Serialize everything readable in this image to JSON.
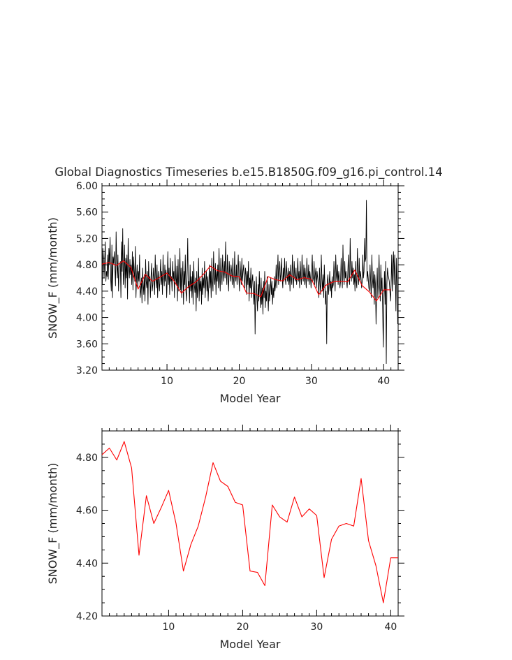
{
  "title": "Global Diagnostics Timeseries b.e15.B1850G.f09_g16.pi_control.14",
  "colors": {
    "monthly_line": "#000000",
    "annual_line": "#ff0000",
    "axes": "#000000",
    "background": "#ffffff"
  },
  "chart_data": [
    {
      "type": "line",
      "xlabel": "Model Year",
      "ylabel": "SNOW_F (mm/month)",
      "xlim": [
        1,
        42
      ],
      "ylim": [
        3.2,
        6.0
      ],
      "xticks": [
        "10",
        "20",
        "30",
        "40"
      ],
      "yticks": [
        "3.20",
        "3.60",
        "4.00",
        "4.40",
        "4.80",
        "5.20",
        "5.60",
        "6.00"
      ],
      "grid": false,
      "series": [
        {
          "color": "#000000",
          "x_start": 1.04,
          "x_step": 0.0833,
          "values": [
            4.5,
            5.05,
            4.9,
            4.6,
            4.88,
            5.15,
            4.55,
            4.7,
            4.62,
            4.95,
            4.58,
            5.05,
            4.8,
            5.22,
            4.58,
            4.4,
            5.1,
            4.3,
            4.92,
            4.82,
            5.0,
            4.75,
            4.48,
            5.3,
            4.8,
            4.6,
            4.95,
            4.4,
            4.75,
            4.78,
            4.85,
            4.3,
            5.15,
            4.7,
            5.35,
            4.5,
            4.68,
            5.1,
            4.45,
            4.9,
            4.6,
            4.95,
            4.28,
            5.2,
            4.75,
            4.6,
            4.88,
            4.65,
            4.8,
            4.5,
            5.0,
            4.42,
            4.92,
            4.7,
            4.55,
            5.08,
            4.3,
            4.62,
            4.8,
            4.45,
            4.7,
            4.55,
            4.95,
            4.3,
            4.4,
            4.6,
            4.22,
            4.75,
            4.5,
            4.35,
            4.65,
            4.25,
            4.88,
            4.55,
            4.45,
            4.7,
            4.2,
            4.85,
            4.55,
            4.62,
            4.3,
            4.6,
            4.82,
            4.4,
            4.5,
            4.75,
            4.58,
            4.35,
            4.95,
            4.6,
            4.45,
            4.8,
            4.3,
            4.7,
            4.55,
            4.4,
            4.62,
            4.88,
            4.5,
            4.7,
            4.35,
            4.95,
            4.62,
            4.48,
            4.8,
            4.55,
            4.72,
            4.3,
            4.6,
            5.0,
            4.5,
            4.75,
            4.35,
            4.9,
            4.55,
            4.62,
            4.4,
            4.85,
            4.58,
            4.7,
            4.3,
            4.95,
            4.6,
            4.5,
            4.78,
            4.25,
            4.88,
            4.4,
            4.6,
            5.05,
            4.42,
            4.75,
            4.3,
            4.6,
            4.85,
            4.2,
            4.7,
            4.5,
            4.95,
            4.4,
            4.25,
            4.68,
            5.2,
            4.45,
            4.55,
            4.22,
            4.8,
            4.4,
            4.62,
            4.3,
            4.7,
            4.2,
            4.85,
            4.5,
            4.38,
            4.6,
            4.1,
            4.7,
            4.3,
            4.45,
            4.9,
            4.25,
            4.62,
            4.4,
            4.55,
            4.2,
            4.75,
            4.35,
            4.6,
            4.45,
            4.85,
            4.3,
            4.55,
            4.7,
            4.4,
            4.62,
            4.25,
            4.5,
            4.8,
            4.45,
            4.7,
            4.3,
            4.9,
            4.55,
            4.4,
            5.0,
            4.6,
            4.5,
            4.82,
            4.35,
            4.7,
            4.55,
            4.8,
            4.45,
            5.05,
            4.6,
            4.4,
            4.9,
            4.65,
            4.5,
            4.95,
            4.7,
            4.55,
            4.85,
            4.6,
            5.15,
            4.7,
            4.5,
            4.95,
            4.6,
            4.4,
            4.85,
            4.65,
            4.55,
            4.8,
            4.7,
            4.5,
            4.9,
            4.6,
            4.45,
            5.0,
            4.65,
            4.55,
            4.8,
            4.5,
            4.7,
            4.95,
            4.6,
            4.4,
            4.85,
            4.65,
            4.5,
            4.9,
            4.55,
            4.7,
            4.8,
            4.6,
            4.45,
            4.75,
            4.65,
            4.35,
            4.7,
            4.5,
            4.85,
            4.25,
            4.6,
            4.45,
            4.75,
            4.3,
            4.55,
            4.65,
            4.4,
            4.2,
            4.55,
            3.75,
            4.4,
            4.62,
            4.3,
            4.1,
            4.5,
            4.25,
            4.7,
            4.35,
            4.15,
            4.6,
            4.2,
            4.45,
            4.05,
            4.55,
            4.3,
            4.7,
            4.15,
            4.4,
            4.25,
            4.62,
            4.35,
            4.1,
            4.5,
            4.25,
            4.4,
            4.6,
            4.35,
            4.55,
            4.2,
            4.45,
            4.3,
            4.62,
            4.4,
            4.5,
            4.8,
            4.45,
            4.65,
            4.95,
            4.5,
            4.7,
            4.85,
            4.55,
            4.65,
            4.9,
            4.6,
            4.45,
            4.75,
            4.55,
            4.9,
            4.6,
            4.5,
            4.85,
            4.65,
            4.55,
            4.75,
            4.5,
            4.7,
            4.4,
            4.8,
            4.6,
            4.5,
            4.95,
            4.65,
            4.45,
            4.85,
            4.6,
            4.55,
            4.75,
            4.5,
            4.65,
            4.9,
            4.55,
            4.7,
            4.45,
            4.85,
            4.6,
            4.5,
            4.95,
            4.65,
            4.55,
            4.8,
            4.5,
            4.75,
            4.6,
            4.45,
            4.9,
            4.65,
            4.55,
            4.8,
            4.5,
            4.7,
            4.6,
            4.45,
            4.7,
            4.95,
            4.55,
            4.6,
            4.85,
            4.5,
            4.65,
            4.75,
            4.45,
            4.7,
            4.6,
            4.5,
            4.3,
            4.75,
            4.5,
            4.35,
            4.95,
            4.6,
            4.4,
            4.65,
            4.3,
            4.8,
            4.5,
            4.2,
            4.4,
            3.6,
            4.55,
            4.65,
            4.35,
            4.5,
            4.7,
            4.4,
            4.55,
            4.3,
            4.62,
            4.45,
            4.5,
            4.85,
            4.6,
            4.4,
            4.95,
            4.65,
            4.55,
            4.8,
            4.5,
            4.7,
            4.6,
            4.45,
            4.55,
            4.9,
            4.6,
            4.45,
            5.1,
            4.65,
            4.5,
            4.85,
            4.6,
            4.7,
            4.55,
            4.45,
            4.65,
            4.95,
            4.6,
            4.5,
            5.2,
            4.7,
            4.55,
            4.85,
            4.6,
            4.75,
            4.5,
            4.65,
            4.4,
            4.85,
            4.55,
            4.45,
            5.05,
            4.65,
            4.5,
            4.9,
            4.55,
            4.7,
            4.6,
            4.45,
            4.55,
            4.95,
            4.6,
            4.7,
            5.2,
            4.85,
            4.9,
            5.78,
            4.55,
            4.7,
            4.6,
            4.45,
            4.4,
            4.8,
            4.55,
            4.3,
            4.95,
            4.6,
            4.45,
            4.7,
            4.2,
            4.65,
            4.5,
            3.9,
            4.4,
            4.75,
            4.3,
            4.55,
            4.95,
            4.45,
            4.25,
            4.8,
            4.4,
            4.6,
            4.1,
            3.55,
            4.3,
            4.7,
            4.2,
            4.85,
            3.3,
            4.5,
            4.75,
            4.65,
            4.6,
            4.55,
            4.4,
            4.25,
            4.5,
            4.95,
            4.4,
            4.8,
            5.0,
            4.5,
            4.95,
            4.7,
            4.1,
            4.9,
            4.5,
            3.9
          ]
        },
        {
          "color": "#ff0000",
          "x": [
            1,
            2,
            3,
            4,
            5,
            6,
            7,
            8,
            9,
            10,
            11,
            12,
            13,
            14,
            15,
            16,
            17,
            18,
            19,
            20,
            21,
            22,
            23,
            24,
            25,
            26,
            27,
            28,
            29,
            30,
            31,
            32,
            33,
            34,
            35,
            36,
            37,
            38,
            39,
            40,
            41
          ],
          "values": [
            4.81,
            4.835,
            4.79,
            4.86,
            4.76,
            4.43,
            4.655,
            4.55,
            4.61,
            4.675,
            4.55,
            4.37,
            4.47,
            4.54,
            4.65,
            4.78,
            4.71,
            4.69,
            4.63,
            4.62,
            4.37,
            4.365,
            4.315,
            4.62,
            4.575,
            4.555,
            4.65,
            4.575,
            4.605,
            4.58,
            4.345,
            4.49,
            4.54,
            4.55,
            4.54,
            4.72,
            4.485,
            4.39,
            4.25,
            4.42,
            4.42
          ]
        }
      ]
    },
    {
      "type": "line",
      "xlabel": "Model Year",
      "ylabel": "SNOW_F (mm/month)",
      "xlim": [
        1,
        41
      ],
      "ylim": [
        4.2,
        4.9
      ],
      "xticks": [
        "10",
        "20",
        "30",
        "40"
      ],
      "yticks": [
        "4.20",
        "4.40",
        "4.60",
        "4.80"
      ],
      "grid": false,
      "series": [
        {
          "color": "#ff0000",
          "x": [
            1,
            2,
            3,
            4,
            5,
            6,
            7,
            8,
            9,
            10,
            11,
            12,
            13,
            14,
            15,
            16,
            17,
            18,
            19,
            20,
            21,
            22,
            23,
            24,
            25,
            26,
            27,
            28,
            29,
            30,
            31,
            32,
            33,
            34,
            35,
            36,
            37,
            38,
            39,
            40,
            41
          ],
          "values": [
            4.81,
            4.835,
            4.79,
            4.86,
            4.76,
            4.43,
            4.655,
            4.55,
            4.61,
            4.675,
            4.55,
            4.37,
            4.47,
            4.54,
            4.65,
            4.78,
            4.71,
            4.69,
            4.63,
            4.62,
            4.37,
            4.365,
            4.315,
            4.62,
            4.575,
            4.555,
            4.65,
            4.575,
            4.605,
            4.58,
            4.345,
            4.49,
            4.54,
            4.55,
            4.54,
            4.72,
            4.485,
            4.39,
            4.25,
            4.42,
            4.42
          ]
        }
      ]
    }
  ]
}
